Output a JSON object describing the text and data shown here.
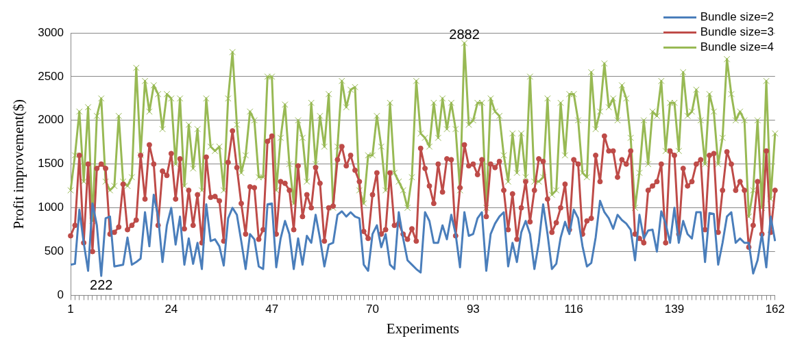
{
  "chart_data": {
    "type": "line",
    "xlabel": "Experiments",
    "ylabel": "Profit improvement($)",
    "categories": [
      "1",
      null,
      null,
      null,
      null,
      null,
      null,
      null,
      null,
      null,
      null,
      null,
      null,
      null,
      null,
      null,
      null,
      null,
      null,
      null,
      null,
      null,
      null,
      "24",
      null,
      null,
      null,
      null,
      null,
      null,
      null,
      null,
      null,
      null,
      null,
      null,
      null,
      null,
      null,
      null,
      null,
      null,
      null,
      null,
      null,
      null,
      "47",
      null,
      null,
      null,
      null,
      null,
      null,
      null,
      null,
      null,
      null,
      null,
      null,
      null,
      null,
      null,
      null,
      null,
      null,
      null,
      null,
      null,
      null,
      "70",
      null,
      null,
      null,
      null,
      null,
      null,
      null,
      null,
      null,
      null,
      null,
      null,
      null,
      null,
      null,
      null,
      null,
      null,
      null,
      null,
      null,
      null,
      "93",
      null,
      null,
      null,
      null,
      null,
      null,
      null,
      null,
      null,
      null,
      null,
      null,
      null,
      null,
      null,
      null,
      null,
      null,
      null,
      null,
      null,
      null,
      "116",
      null,
      null,
      null,
      null,
      null,
      null,
      null,
      null,
      null,
      null,
      null,
      null,
      null,
      null,
      null,
      null,
      null,
      null,
      null,
      null,
      null,
      null,
      "139",
      null,
      null,
      null,
      null,
      null,
      null,
      null,
      null,
      null,
      null,
      null,
      null,
      null,
      null,
      null,
      null,
      null,
      null,
      null,
      null,
      null,
      null,
      "162"
    ],
    "series": [
      {
        "name": "Bundle size=2",
        "color": "#4a7ebb",
        "marker": "none",
        "values": [
          350,
          360,
          980,
          600,
          280,
          1050,
          800,
          222,
          880,
          900,
          330,
          340,
          350,
          660,
          350,
          380,
          420,
          950,
          560,
          1150,
          900,
          380,
          800,
          1000,
          580,
          900,
          350,
          650,
          360,
          600,
          300,
          1040,
          620,
          640,
          560,
          340,
          880,
          1000,
          920,
          620,
          300,
          700,
          640,
          330,
          300,
          1040,
          1050,
          320,
          650,
          850,
          700,
          300,
          650,
          350,
          680,
          600,
          920,
          650,
          330,
          580,
          600,
          920,
          960,
          900,
          950,
          900,
          880,
          350,
          280,
          700,
          800,
          550,
          700,
          350,
          300,
          950,
          650,
          400,
          350,
          300,
          260,
          950,
          850,
          600,
          600,
          800,
          640,
          920,
          700,
          320,
          950,
          680,
          700,
          880,
          950,
          280,
          700,
          820,
          900,
          950,
          330,
          600,
          380,
          720,
          850,
          700,
          300,
          600,
          1040,
          700,
          300,
          360,
          660,
          840,
          700,
          980,
          880,
          560,
          330,
          370,
          660,
          1080,
          950,
          880,
          760,
          920,
          860,
          820,
          750,
          400,
          920,
          650,
          740,
          750,
          500,
          960,
          820,
          600,
          1000,
          600,
          850,
          700,
          650,
          950,
          950,
          380,
          940,
          930,
          350,
          600,
          900,
          950,
          600,
          650,
          600,
          600,
          250,
          400,
          700,
          320,
          900,
          620
        ]
      },
      {
        "name": "Bundle size=3",
        "color": "#be4b48",
        "marker": "circle",
        "values": [
          680,
          800,
          1600,
          600,
          1500,
          500,
          1450,
          1500,
          1450,
          700,
          720,
          780,
          1270,
          750,
          800,
          860,
          1600,
          1100,
          1720,
          1500,
          800,
          1420,
          1370,
          1620,
          1100,
          1560,
          760,
          1200,
          800,
          1150,
          600,
          1580,
          1120,
          1130,
          1080,
          620,
          1520,
          1880,
          1460,
          1050,
          700,
          1240,
          1230,
          640,
          750,
          1760,
          1820,
          700,
          1300,
          1280,
          1200,
          750,
          1480,
          900,
          1150,
          1000,
          1460,
          1280,
          620,
          1000,
          1020,
          1550,
          1700,
          1480,
          1600,
          1430,
          1300,
          730,
          650,
          1150,
          1400,
          700,
          750,
          1400,
          800,
          820,
          700,
          640,
          760,
          620,
          1680,
          1450,
          1250,
          1050,
          1500,
          1180,
          1560,
          1550,
          680,
          1230,
          1720,
          1480,
          1500,
          1380,
          1550,
          900,
          1500,
          1460,
          1530,
          1200,
          750,
          1160,
          640,
          1000,
          1300,
          840,
          1200,
          1560,
          1530,
          1100,
          720,
          830,
          1000,
          1270,
          750,
          1550,
          1500,
          700,
          850,
          880,
          1600,
          1300,
          1820,
          1650,
          1650,
          1350,
          1550,
          1500,
          1650,
          700,
          650,
          600,
          1200,
          1250,
          1300,
          1500,
          600,
          1650,
          1600,
          700,
          1450,
          1250,
          1300,
          1500,
          1550,
          750,
          1600,
          1620,
          720,
          1200,
          1640,
          1500,
          1200,
          1300,
          1200,
          550,
          800,
          1300,
          700,
          1650,
          720,
          1200
        ]
      },
      {
        "name": "Bundle size=4",
        "color": "#98b954",
        "marker": "cross",
        "values": [
          1200,
          1600,
          2100,
          1300,
          2150,
          850,
          2050,
          2250,
          1300,
          1200,
          1250,
          2050,
          1300,
          1250,
          1350,
          2600,
          1600,
          2450,
          2100,
          2400,
          2300,
          1900,
          2300,
          2250,
          1500,
          2250,
          1250,
          1950,
          1450,
          1900,
          1200,
          2250,
          1700,
          1650,
          1700,
          1200,
          2250,
          2780,
          1950,
          1400,
          1600,
          2100,
          2000,
          1350,
          1350,
          2500,
          2500,
          1200,
          1800,
          2180,
          1500,
          1050,
          2000,
          1800,
          1300,
          2200,
          1500,
          2050,
          1700,
          2300,
          1000,
          1700,
          2450,
          2150,
          2350,
          2380,
          1200,
          1050,
          1600,
          1600,
          2050,
          1700,
          1200,
          2200,
          1400,
          1300,
          1200,
          1000,
          1350,
          2450,
          1850,
          1800,
          1700,
          2200,
          1800,
          2250,
          1900,
          2200,
          1900,
          1200,
          2882,
          1950,
          2000,
          2200,
          2200,
          1000,
          2250,
          2100,
          2050,
          1600,
          1300,
          1850,
          1400,
          1850,
          1350,
          2500,
          1300,
          1300,
          1350,
          2250,
          1150,
          1200,
          2200,
          1600,
          2300,
          2300,
          2000,
          1400,
          1350,
          2550,
          1900,
          2100,
          2650,
          2150,
          2250,
          2000,
          2400,
          2250,
          1800,
          1000,
          1400,
          2000,
          1500,
          2100,
          2050,
          2450,
          1650,
          2200,
          2200,
          1650,
          2550,
          2050,
          2100,
          2350,
          2000,
          1500,
          2300,
          2100,
          1500,
          1800,
          2700,
          2300,
          2000,
          2100,
          2000,
          900,
          1200,
          2000,
          1000,
          2450,
          1100,
          1850
        ]
      }
    ],
    "ylim": [
      0,
      3000
    ],
    "yticks": [
      0,
      500,
      1000,
      1500,
      2000,
      2500,
      3000
    ],
    "grid": "y",
    "legend": "top right",
    "annotations": [
      {
        "text": "2882",
        "y": 2882
      },
      {
        "text": "222",
        "y": 222
      }
    ]
  }
}
